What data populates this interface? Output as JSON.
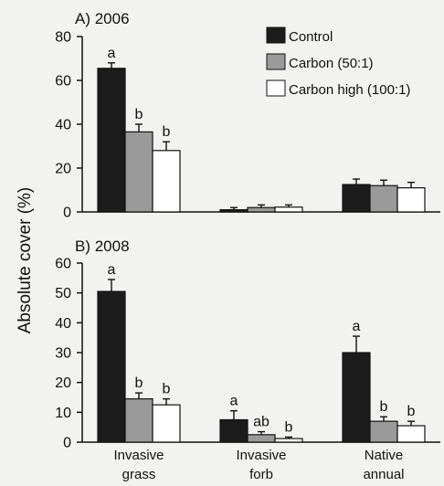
{
  "chart_data": [
    {
      "type": "bar",
      "title": "A) 2006",
      "ylabel": "Absolute cover (%)",
      "xlabel": "",
      "ylim": [
        0,
        80
      ],
      "yticks": [
        0,
        20,
        40,
        60,
        80
      ],
      "categories": [
        "Invasive grass",
        "Invasive forb",
        "Native annual"
      ],
      "series": [
        {
          "name": "Control",
          "color": "#1c1c1c",
          "values": [
            65.5,
            1.0,
            12.5
          ],
          "errors": [
            2.5,
            1.0,
            2.5
          ],
          "labels": [
            "a",
            "",
            ""
          ]
        },
        {
          "name": "Carbon (50:1)",
          "color": "#9a9a9a",
          "values": [
            36.5,
            2.0,
            12.0
          ],
          "errors": [
            3.5,
            1.2,
            2.5
          ],
          "labels": [
            "b",
            "",
            ""
          ]
        },
        {
          "name": "Carbon high (100:1)",
          "color": "#ffffff",
          "values": [
            28.0,
            2.2,
            11.0
          ],
          "errors": [
            4.0,
            1.0,
            2.5
          ],
          "labels": [
            "b",
            "",
            ""
          ]
        }
      ],
      "legend": "top-right",
      "grid": false
    },
    {
      "type": "bar",
      "title": "B) 2008",
      "ylabel": "Absolute cover (%)",
      "xlabel": "",
      "ylim": [
        0,
        60
      ],
      "yticks": [
        0,
        10,
        20,
        30,
        40,
        50,
        60
      ],
      "categories": [
        "Invasive grass",
        "Invasive forb",
        "Native annual"
      ],
      "series": [
        {
          "name": "Control",
          "color": "#1c1c1c",
          "values": [
            50.5,
            7.5,
            30.0
          ],
          "errors": [
            4.0,
            3.0,
            5.5
          ],
          "labels": [
            "a",
            "a",
            "a"
          ]
        },
        {
          "name": "Carbon (50:1)",
          "color": "#9a9a9a",
          "values": [
            14.5,
            2.5,
            7.0
          ],
          "errors": [
            2.0,
            1.0,
            1.5
          ],
          "labels": [
            "b",
            "ab",
            "b"
          ]
        },
        {
          "name": "Carbon high (100:1)",
          "color": "#ffffff",
          "values": [
            12.5,
            1.2,
            5.5
          ],
          "errors": [
            2.0,
            0.5,
            1.5
          ],
          "labels": [
            "b",
            "b",
            "b"
          ]
        }
      ],
      "grid": false
    }
  ],
  "ylabel": "Absolute cover (%)",
  "panels": [
    {
      "title": "A) 2006"
    },
    {
      "title": "B) 2008"
    }
  ],
  "category_labels": [
    {
      "line1": "Invasive",
      "line2": "grass"
    },
    {
      "line1": "Invasive",
      "line2": "forb"
    },
    {
      "line1": "Native",
      "line2": "annual"
    }
  ],
  "legend": [
    {
      "label": "Control",
      "color": "#1c1c1c"
    },
    {
      "label": "Carbon (50:1)",
      "color": "#9a9a9a"
    },
    {
      "label": "Carbon high (100:1)",
      "color": "#ffffff"
    }
  ]
}
